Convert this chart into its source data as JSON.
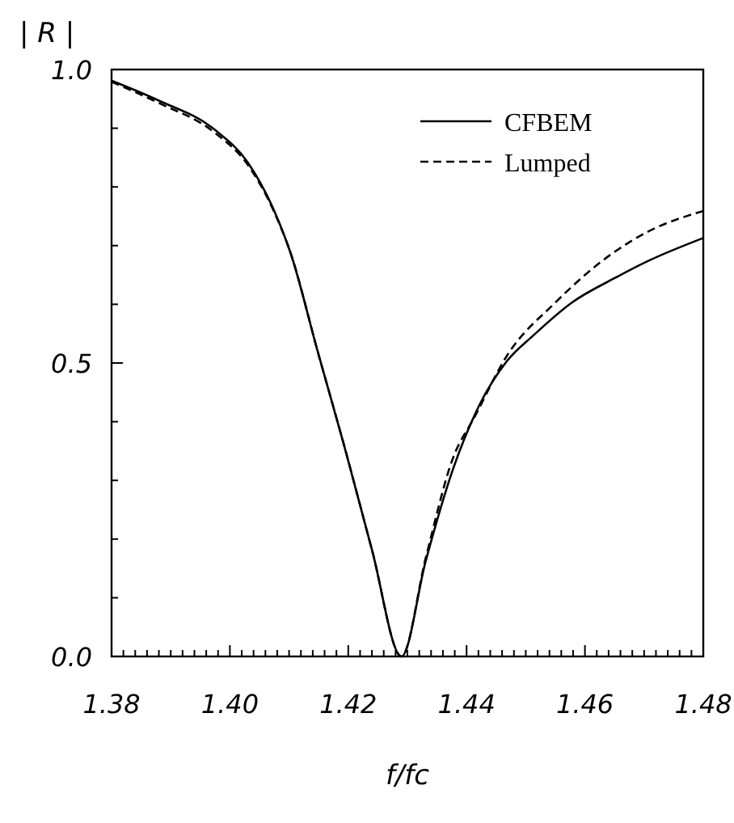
{
  "chart_data": {
    "type": "line",
    "xlabel": "f/fc",
    "ylabel": "| R |",
    "xlim": [
      1.38,
      1.48
    ],
    "ylim": [
      0,
      1
    ],
    "xticks": [
      {
        "value": 1.38,
        "label": "1.38"
      },
      {
        "value": 1.382,
        "label": null
      },
      {
        "value": 1.384,
        "label": null
      },
      {
        "value": 1.386,
        "label": null
      },
      {
        "value": 1.388,
        "label": null
      },
      {
        "value": 1.39,
        "label": null
      },
      {
        "value": 1.392,
        "label": null
      },
      {
        "value": 1.394,
        "label": null
      },
      {
        "value": 1.396,
        "label": null
      },
      {
        "value": 1.398,
        "label": null
      },
      {
        "value": 1.4,
        "label": "1.40"
      },
      {
        "value": 1.402,
        "label": null
      },
      {
        "value": 1.404,
        "label": null
      },
      {
        "value": 1.406,
        "label": null
      },
      {
        "value": 1.408,
        "label": null
      },
      {
        "value": 1.41,
        "label": null
      },
      {
        "value": 1.412,
        "label": null
      },
      {
        "value": 1.414,
        "label": null
      },
      {
        "value": 1.416,
        "label": null
      },
      {
        "value": 1.418,
        "label": null
      },
      {
        "value": 1.42,
        "label": "1.42"
      },
      {
        "value": 1.422,
        "label": null
      },
      {
        "value": 1.424,
        "label": null
      },
      {
        "value": 1.426,
        "label": null
      },
      {
        "value": 1.428,
        "label": null
      },
      {
        "value": 1.43,
        "label": null
      },
      {
        "value": 1.432,
        "label": null
      },
      {
        "value": 1.434,
        "label": null
      },
      {
        "value": 1.436,
        "label": null
      },
      {
        "value": 1.438,
        "label": null
      },
      {
        "value": 1.44,
        "label": "1.44"
      },
      {
        "value": 1.442,
        "label": null
      },
      {
        "value": 1.444,
        "label": null
      },
      {
        "value": 1.446,
        "label": null
      },
      {
        "value": 1.448,
        "label": null
      },
      {
        "value": 1.45,
        "label": null
      },
      {
        "value": 1.452,
        "label": null
      },
      {
        "value": 1.454,
        "label": null
      },
      {
        "value": 1.456,
        "label": null
      },
      {
        "value": 1.458,
        "label": null
      },
      {
        "value": 1.46,
        "label": "1.46"
      },
      {
        "value": 1.462,
        "label": null
      },
      {
        "value": 1.464,
        "label": null
      },
      {
        "value": 1.466,
        "label": null
      },
      {
        "value": 1.468,
        "label": null
      },
      {
        "value": 1.47,
        "label": null
      },
      {
        "value": 1.472,
        "label": null
      },
      {
        "value": 1.474,
        "label": null
      },
      {
        "value": 1.476,
        "label": null
      },
      {
        "value": 1.478,
        "label": null
      },
      {
        "value": 1.48,
        "label": "1.48"
      }
    ],
    "yticks": [
      {
        "value": 0,
        "label": "0.0"
      },
      {
        "value": 0.1,
        "label": null
      },
      {
        "value": 0.2,
        "label": null
      },
      {
        "value": 0.3,
        "label": null
      },
      {
        "value": 0.4,
        "label": null
      },
      {
        "value": 0.5,
        "label": "0.5"
      },
      {
        "value": 0.6,
        "label": null
      },
      {
        "value": 0.7,
        "label": null
      },
      {
        "value": 0.8,
        "label": null
      },
      {
        "value": 0.9,
        "label": null
      },
      {
        "value": 1,
        "label": "1.0"
      }
    ],
    "legend": "top right",
    "grid": false,
    "series": [
      {
        "name": "CFBEM",
        "color": "#000000",
        "line_style": "solid",
        "x": [
          1.38,
          1.388,
          1.3975,
          1.403,
          1.4075,
          1.4103,
          1.4148,
          1.4194,
          1.424,
          1.429,
          1.4331,
          1.4377,
          1.4422,
          1.4468,
          1.4514,
          1.4578,
          1.4651,
          1.4705,
          1.48
        ],
        "values": [
          0.981,
          0.947,
          0.897,
          0.842,
          0.759,
          0.686,
          0.521,
          0.356,
          0.182,
          0.0,
          0.163,
          0.319,
          0.429,
          0.503,
          0.548,
          0.603,
          0.645,
          0.673,
          0.713
        ]
      },
      {
        "name": "Lumped",
        "color": "#000000",
        "line_style": "dashed",
        "x": [
          1.38,
          1.388,
          1.3975,
          1.403,
          1.4075,
          1.4103,
          1.4148,
          1.4194,
          1.424,
          1.429,
          1.4331,
          1.4377,
          1.4413,
          1.4468,
          1.455,
          1.4651,
          1.4705,
          1.48
        ],
        "values": [
          0.979,
          0.943,
          0.892,
          0.838,
          0.757,
          0.686,
          0.521,
          0.356,
          0.182,
          0.0,
          0.168,
          0.338,
          0.407,
          0.512,
          0.603,
          0.69,
          0.723,
          0.759
        ]
      }
    ]
  }
}
